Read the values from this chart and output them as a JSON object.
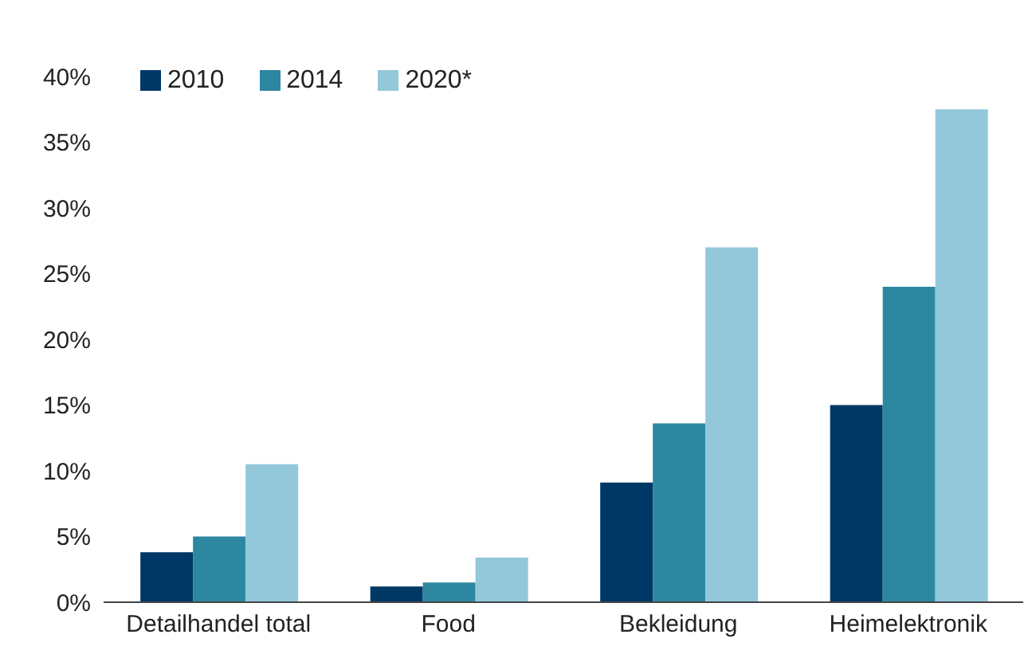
{
  "chart_data": {
    "type": "bar",
    "categories": [
      "Detailhandel total",
      "Food",
      "Bekleidung",
      "Heimelektronik"
    ],
    "series": [
      {
        "name": "2010",
        "color": "#003865",
        "values": [
          3.8,
          1.2,
          9.1,
          15
        ]
      },
      {
        "name": "2014",
        "color": "#2e87a1",
        "values": [
          5,
          1.5,
          13.6,
          24
        ]
      },
      {
        "name": "2020*",
        "color": "#93c8da",
        "values": [
          10.5,
          3.4,
          27,
          37.5
        ]
      }
    ],
    "ylim": [
      0,
      40
    ],
    "yticks": [
      {
        "value": 0,
        "label": "0%"
      },
      {
        "value": 5,
        "label": "5%"
      },
      {
        "value": 10,
        "label": "10%"
      },
      {
        "value": 15,
        "label": "15%"
      },
      {
        "value": 20,
        "label": "20%"
      },
      {
        "value": 25,
        "label": "25%"
      },
      {
        "value": 30,
        "label": "30%"
      },
      {
        "value": 35,
        "label": "35%"
      },
      {
        "value": 40,
        "label": "40%"
      }
    ],
    "grid": false,
    "legend": "top left"
  }
}
